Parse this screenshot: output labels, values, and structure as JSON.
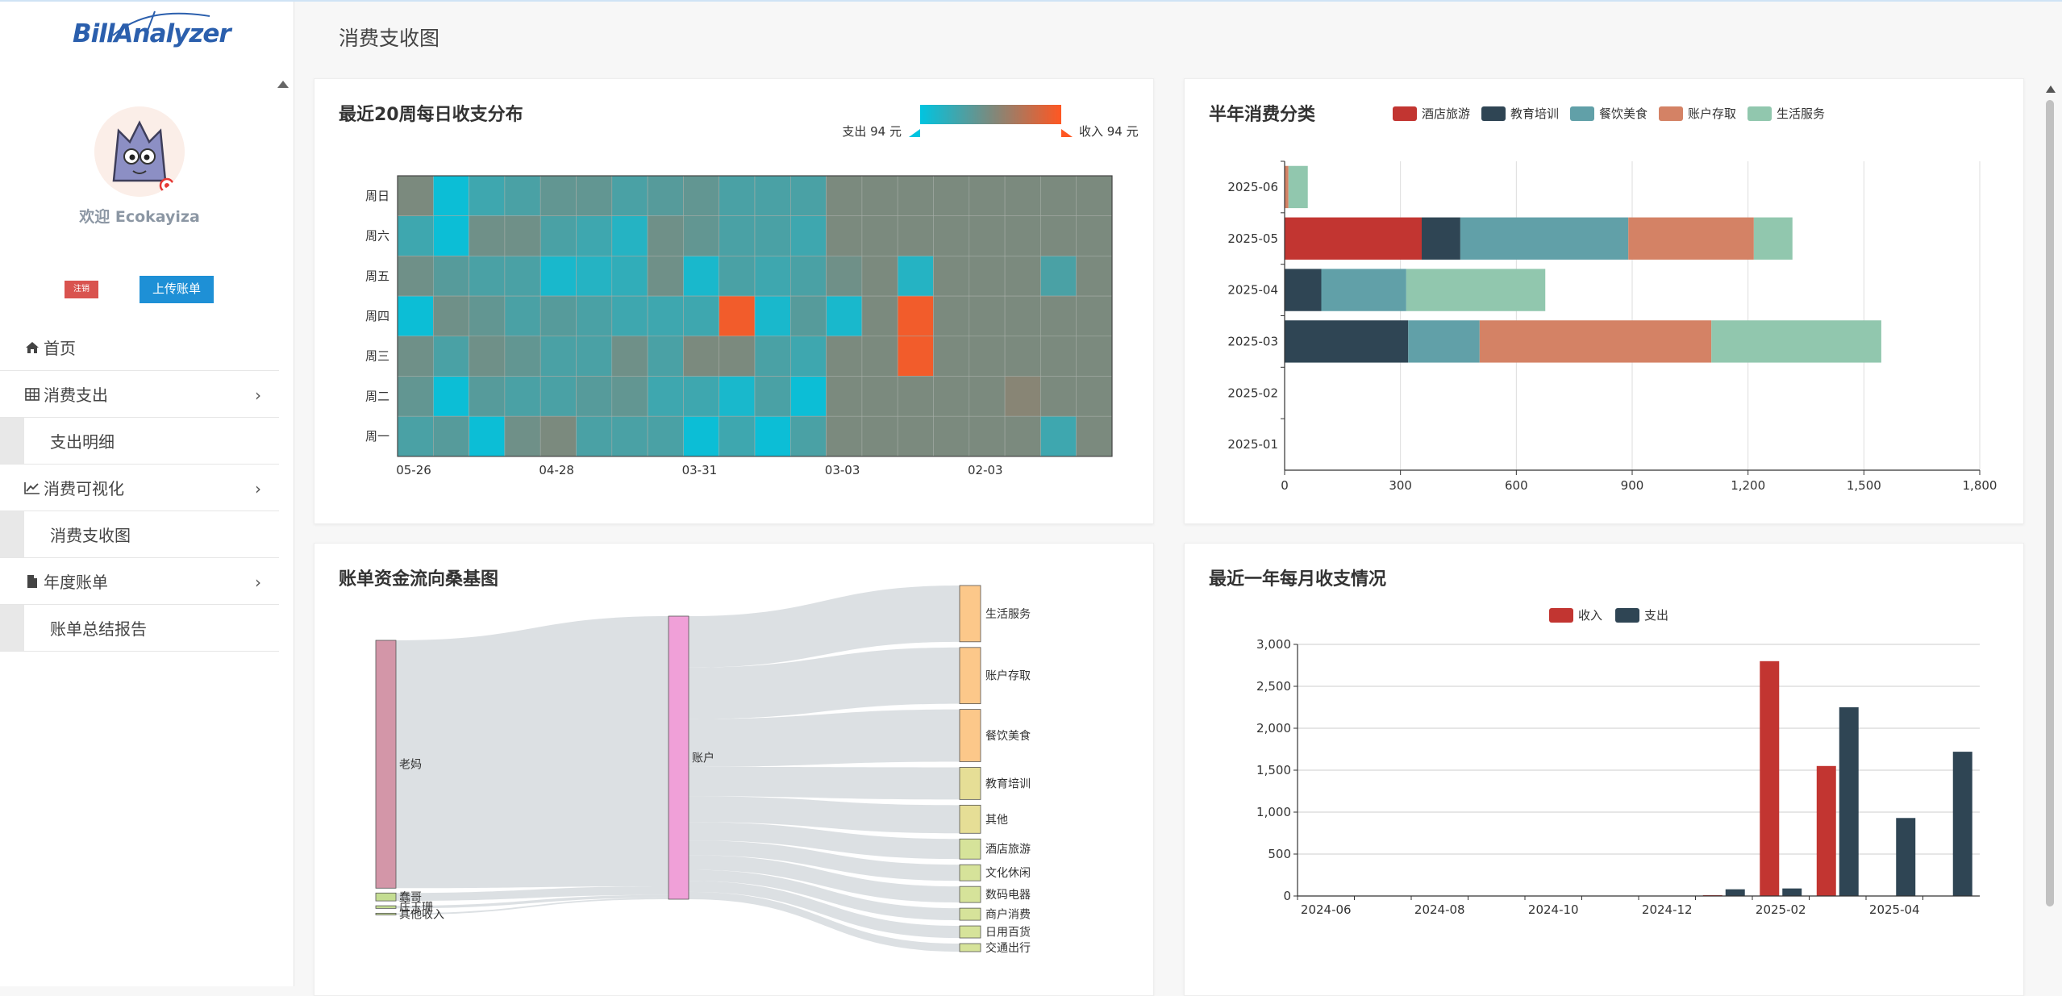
{
  "app": {
    "logo_text": "BillAnalyzer",
    "page_title": "消费支收图"
  },
  "sidebar": {
    "welcome": "欢迎 Ecokayiza",
    "logout_label": "注销",
    "upload_label": "上传账单",
    "nav": [
      {
        "label": "首页",
        "icon": "home-icon"
      },
      {
        "label": "消费支出",
        "icon": "table-icon",
        "chevron": "›"
      },
      {
        "label": "支出明细",
        "sub": true
      },
      {
        "label": "消费可视化",
        "icon": "line-chart-icon",
        "chevron": "›"
      },
      {
        "label": "消费支收图",
        "sub": true
      },
      {
        "label": "年度账单",
        "icon": "file-icon",
        "chevron": "›"
      },
      {
        "label": "账单总结报告",
        "sub": true
      }
    ]
  },
  "heatmap": {
    "title": "最近20周每日收支分布",
    "legend_min": "支出 94 元",
    "legend_max": "收入 94 元",
    "colors": {
      "low": "#00c4e0",
      "mid": "#7b8a7e",
      "high": "#ff5722"
    },
    "chart_data": {
      "type": "heatmap",
      "rows": [
        "周日",
        "周六",
        "周五",
        "周四",
        "周三",
        "周二",
        "周一"
      ],
      "x_labels": [
        "05-26",
        "04-28",
        "03-31",
        "03-03",
        "02-03"
      ],
      "columns": 20,
      "values": [
        [
          0,
          -0.9,
          -0.5,
          -0.4,
          -0.2,
          -0.2,
          -0.4,
          -0.3,
          -0.2,
          -0.4,
          -0.4,
          -0.4,
          0,
          0,
          0,
          0,
          0,
          0,
          0,
          0
        ],
        [
          -0.5,
          -0.9,
          -0.1,
          -0.1,
          -0.4,
          -0.5,
          -0.7,
          -0.1,
          -0.2,
          -0.4,
          -0.4,
          -0.5,
          0,
          0,
          0,
          0,
          0,
          0,
          0,
          0
        ],
        [
          -0.1,
          -0.3,
          -0.4,
          -0.4,
          -0.8,
          -0.7,
          -0.6,
          -0.1,
          -0.8,
          -0.4,
          -0.5,
          -0.4,
          -0.1,
          0,
          -0.7,
          0,
          0,
          0,
          -0.4,
          0
        ],
        [
          -0.9,
          -0.1,
          -0.2,
          -0.4,
          -0.3,
          -0.4,
          -0.5,
          -0.5,
          -0.5,
          0.9,
          -0.8,
          -0.3,
          -0.8,
          0,
          0.9,
          0,
          0,
          0,
          0,
          0
        ],
        [
          -0.1,
          -0.4,
          -0.1,
          -0.2,
          -0.4,
          -0.4,
          -0.1,
          -0.4,
          0,
          0,
          -0.4,
          -0.5,
          0,
          0,
          0.9,
          0,
          0,
          0,
          0,
          0
        ],
        [
          -0.2,
          -0.9,
          -0.3,
          -0.4,
          -0.4,
          -0.3,
          -0.2,
          -0.5,
          -0.5,
          -0.8,
          -0.4,
          -0.9,
          0,
          0,
          0,
          0,
          0,
          0.1,
          0,
          0
        ],
        [
          -0.4,
          -0.3,
          -0.9,
          -0.1,
          0,
          -0.4,
          -0.4,
          -0.4,
          -0.9,
          -0.5,
          -0.9,
          -0.4,
          0,
          0,
          0,
          0,
          0,
          0,
          -0.5,
          0
        ]
      ]
    }
  },
  "categories_chart": {
    "title": "半年消费分类",
    "colors": [
      "#c23531",
      "#2f4554",
      "#61a0a8",
      "#d48265",
      "#91c7ae"
    ],
    "chart_data": {
      "type": "bar",
      "orientation": "horizontal",
      "stacked": true,
      "categories": [
        "2025-06",
        "2025-05",
        "2025-04",
        "2025-03",
        "2025-02",
        "2025-01"
      ],
      "series": [
        {
          "name": "酒店旅游",
          "values": [
            0,
            355,
            0,
            0,
            0,
            0
          ]
        },
        {
          "name": "教育培训",
          "values": [
            0,
            100,
            95,
            320,
            0,
            0
          ]
        },
        {
          "name": "餐饮美食",
          "values": [
            0,
            435,
            220,
            185,
            0,
            0
          ]
        },
        {
          "name": "账户存取",
          "values": [
            10,
            325,
            0,
            600,
            0,
            0
          ]
        },
        {
          "name": "生活服务",
          "values": [
            50,
            100,
            360,
            440,
            0,
            0
          ]
        }
      ],
      "xlim": [
        0,
        1800
      ],
      "x_ticks": [
        "0",
        "300",
        "600",
        "900",
        "1,200",
        "1,500",
        "1,800"
      ],
      "legend": "top"
    }
  },
  "sankey": {
    "title": "账单资金流向桑基图",
    "colors": {
      "source": "#d396a8",
      "hub": "#f0a0d8",
      "high": "#fcc88a",
      "mid": "#e6de96",
      "low": "#d6e39a",
      "src_small": "#c4dd92",
      "link": "#d6dade"
    },
    "chart_data": {
      "type": "sankey",
      "sources": [
        {
          "name": "老妈",
          "value": 94
        },
        {
          "name": "蠢哥",
          "value": 3
        },
        {
          "name": "庄玉珊",
          "value": 1
        },
        {
          "name": "其他收入",
          "value": 0.5
        }
      ],
      "hub": "账户",
      "targets": [
        {
          "name": "生活服务",
          "value": 14
        },
        {
          "name": "账户存取",
          "value": 14
        },
        {
          "name": "餐饮美食",
          "value": 13
        },
        {
          "name": "教育培训",
          "value": 8
        },
        {
          "name": "其他",
          "value": 7
        },
        {
          "name": "酒店旅游",
          "value": 5
        },
        {
          "name": "文化休闲",
          "value": 4
        },
        {
          "name": "数码电器",
          "value": 4
        },
        {
          "name": "商户消费",
          "value": 3
        },
        {
          "name": "日用百货",
          "value": 3
        },
        {
          "name": "交通出行",
          "value": 2
        }
      ]
    }
  },
  "monthly_chart": {
    "title": "最近一年每月收支情况",
    "colors": [
      "#c23531",
      "#2f4554"
    ],
    "chart_data": {
      "type": "bar",
      "categories": [
        "2024-06",
        "2024-07",
        "2024-08",
        "2024-09",
        "2024-10",
        "2024-11",
        "2024-12",
        "2025-01",
        "2025-02",
        "2025-03",
        "2025-04",
        "2025-05"
      ],
      "x_labels": [
        "2024-06",
        "2024-08",
        "2024-10",
        "2024-12",
        "2025-02",
        "2025-04"
      ],
      "series": [
        {
          "name": "收入",
          "values": [
            0,
            0,
            0,
            0,
            0,
            0,
            0,
            10,
            2800,
            1550,
            0,
            0
          ]
        },
        {
          "name": "支出",
          "values": [
            0,
            0,
            0,
            0,
            0,
            0,
            0,
            80,
            90,
            2250,
            930,
            1720
          ]
        }
      ],
      "ylim": [
        0,
        3000
      ],
      "y_ticks": [
        "0",
        "500",
        "1,000",
        "1,500",
        "2,000",
        "2,500",
        "3,000"
      ],
      "legend": "top"
    }
  }
}
